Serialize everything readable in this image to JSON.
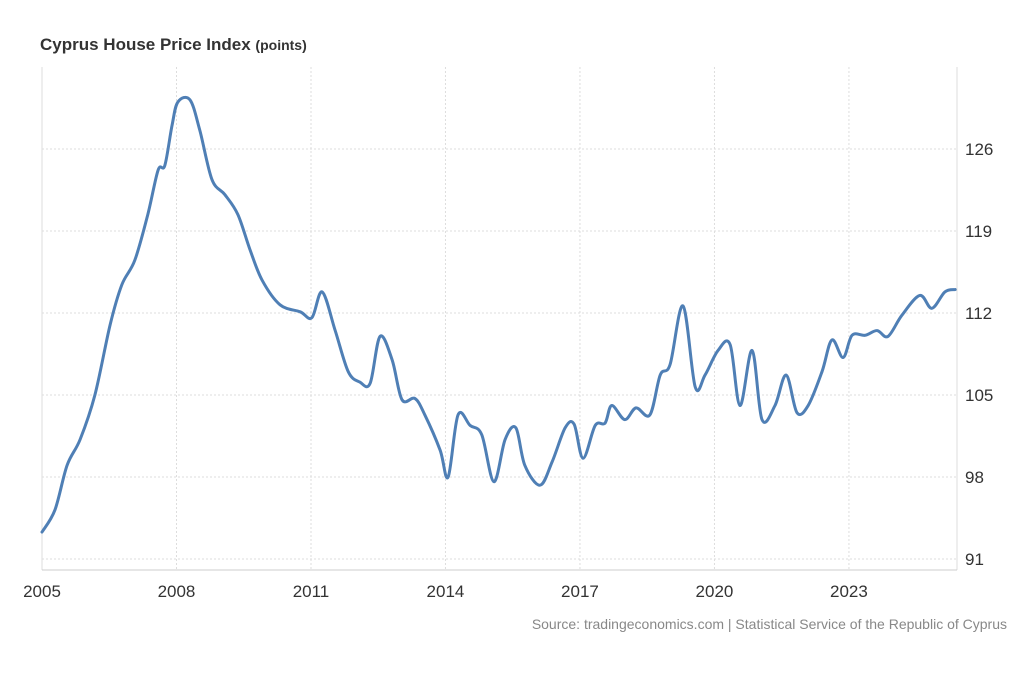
{
  "chart_data": {
    "type": "line",
    "title": "Cyprus House Price Index",
    "unit": "(points)",
    "source": "Source: tradingeconomics.com | Statistical Service of the Republic of Cyprus",
    "xlim": [
      2005,
      2025.4
    ],
    "ylim": [
      90,
      133
    ],
    "x_ticks": [
      2005,
      2008,
      2011,
      2014,
      2017,
      2020,
      2023
    ],
    "y_ticks": [
      91,
      98,
      105,
      112,
      119,
      126
    ],
    "y_axis_side": "right",
    "grid": true,
    "line_color": "#4f7fb5",
    "series": [
      {
        "x": [
          2005.0,
          2005.29,
          2005.56,
          2005.85,
          2006.18,
          2006.52,
          2006.78,
          2007.07,
          2007.36,
          2007.59,
          2007.74,
          2007.9,
          2008.03,
          2008.3,
          2008.52,
          2008.79,
          2009.08,
          2009.37,
          2009.64,
          2009.91,
          2010.31,
          2010.76,
          2011.02,
          2011.25,
          2011.54,
          2011.83,
          2012.09,
          2012.32,
          2012.54,
          2012.81,
          2013.03,
          2013.32,
          2013.54,
          2013.88,
          2014.06,
          2014.28,
          2014.55,
          2014.81,
          2015.08,
          2015.33,
          2015.57,
          2015.77,
          2016.11,
          2016.38,
          2016.67,
          2016.87,
          2017.07,
          2017.34,
          2017.56,
          2017.71,
          2018.0,
          2018.25,
          2018.56,
          2018.79,
          2019.01,
          2019.3,
          2019.57,
          2019.79,
          2020.08,
          2020.35,
          2020.57,
          2020.84,
          2021.06,
          2021.35,
          2021.6,
          2021.84,
          2022.09,
          2022.4,
          2022.62,
          2022.87,
          2023.07,
          2023.36,
          2023.63,
          2023.87,
          2024.18,
          2024.58,
          2024.85,
          2025.14,
          2025.37
        ],
        "y": [
          93.3,
          95.2,
          99.0,
          101.2,
          105.0,
          111.0,
          114.4,
          116.5,
          120.4,
          124.2,
          124.6,
          128.0,
          130.0,
          130.2,
          127.6,
          123.4,
          122.1,
          120.4,
          117.4,
          114.8,
          112.7,
          112.1,
          111.6,
          113.8,
          110.5,
          107.0,
          106.1,
          106.0,
          110.0,
          108.0,
          104.6,
          104.7,
          103.3,
          100.3,
          98.0,
          103.3,
          102.4,
          101.6,
          97.6,
          101.2,
          102.2,
          99.0,
          97.3,
          99.3,
          102.2,
          102.5,
          99.6,
          102.4,
          102.6,
          104.1,
          102.9,
          103.9,
          103.3,
          106.7,
          107.6,
          112.6,
          105.7,
          106.7,
          108.8,
          109.3,
          104.1,
          108.8,
          102.9,
          104.1,
          106.7,
          103.5,
          104.1,
          107.0,
          109.7,
          108.2,
          110.1,
          110.1,
          110.5,
          110.0,
          111.8,
          113.5,
          112.4,
          113.8,
          114.0
        ]
      }
    ]
  }
}
